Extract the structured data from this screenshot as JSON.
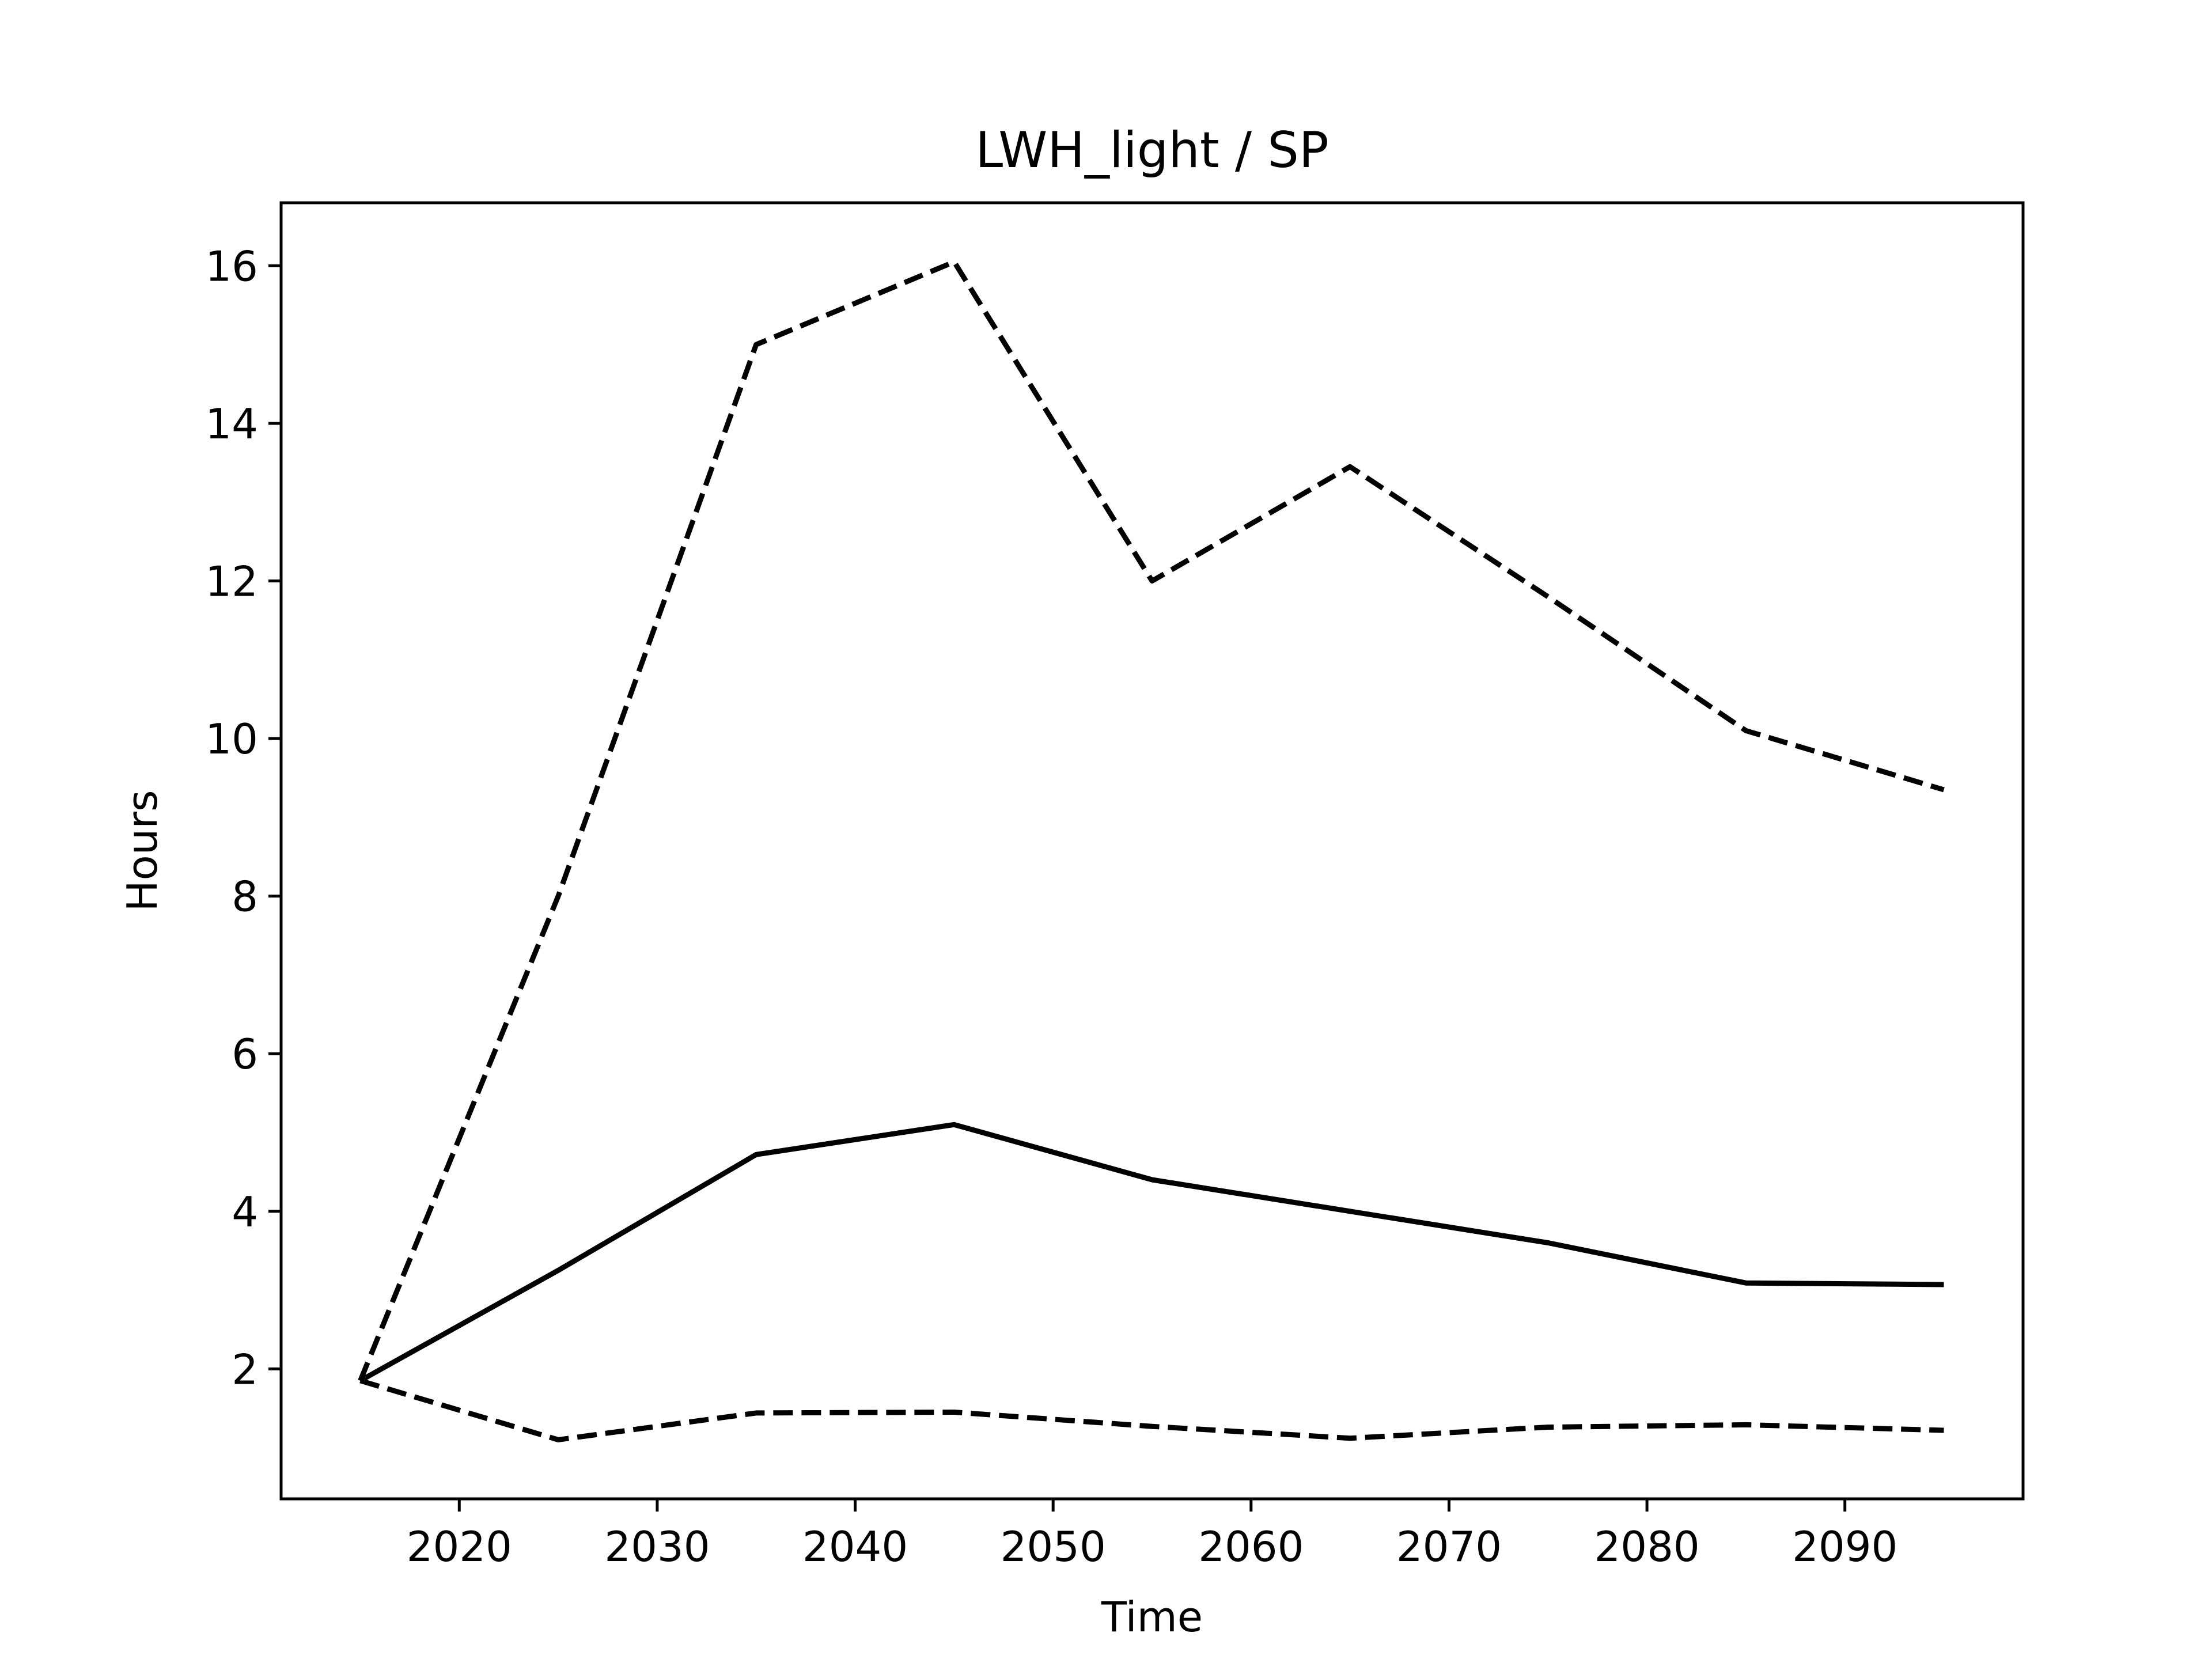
{
  "chart_data": {
    "type": "line",
    "title": "LWH_light / SP",
    "xlabel": "Time",
    "ylabel": "Hours",
    "xlim": [
      2011,
      2099
    ],
    "ylim": [
      0.35,
      16.8
    ],
    "xticks": [
      2020,
      2030,
      2040,
      2050,
      2060,
      2070,
      2080,
      2090
    ],
    "yticks": [
      2,
      4,
      6,
      8,
      10,
      12,
      14,
      16
    ],
    "grid": false,
    "legend": "none",
    "series": [
      {
        "style": "dashed",
        "color": "#000000",
        "x": [
          2015,
          2025,
          2035,
          2045,
          2055,
          2065,
          2075,
          2085,
          2095
        ],
        "y": [
          1.85,
          8.0,
          15.0,
          16.05,
          12.0,
          13.45,
          11.8,
          10.1,
          9.35
        ]
      },
      {
        "style": "solid",
        "color": "#000000",
        "x": [
          2015,
          2025,
          2035,
          2045,
          2055,
          2065,
          2075,
          2085,
          2095
        ],
        "y": [
          1.85,
          3.25,
          4.72,
          5.1,
          4.4,
          4.0,
          3.6,
          3.09,
          3.07
        ]
      },
      {
        "style": "dashed",
        "color": "#000000",
        "x": [
          2015,
          2025,
          2035,
          2045,
          2055,
          2065,
          2075,
          2085,
          2095
        ],
        "y": [
          1.85,
          1.1,
          1.44,
          1.45,
          1.27,
          1.12,
          1.26,
          1.29,
          1.22
        ]
      }
    ]
  }
}
